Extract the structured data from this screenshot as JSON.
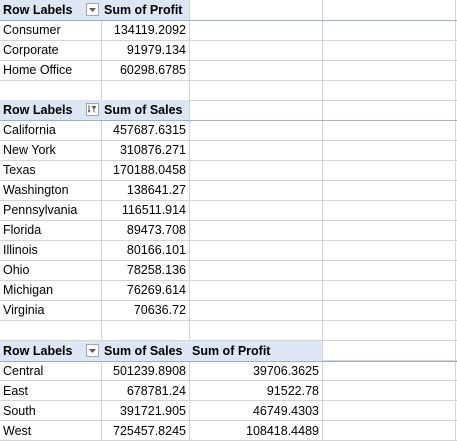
{
  "pivot1": {
    "headers": [
      "Row Labels",
      "Sum of Profit"
    ],
    "rows": [
      [
        "Consumer",
        "134119.2092"
      ],
      [
        "Corporate",
        "91979.134"
      ],
      [
        "Home Office",
        "60298.6785"
      ]
    ],
    "filter_icon": "dropdown-arrow-icon"
  },
  "pivot2": {
    "headers": [
      "Row Labels",
      "Sum of Sales"
    ],
    "rows": [
      [
        "California",
        "457687.6315"
      ],
      [
        "New York",
        "310876.271"
      ],
      [
        "Texas",
        "170188.0458"
      ],
      [
        "Washington",
        "138641.27"
      ],
      [
        "Pennsylvania",
        "116511.914"
      ],
      [
        "Florida",
        "89473.708"
      ],
      [
        "Illinois",
        "80166.101"
      ],
      [
        "Ohio",
        "78258.136"
      ],
      [
        "Michigan",
        "76269.614"
      ],
      [
        "Virginia",
        "70636.72"
      ]
    ],
    "filter_icon": "sort-filter-icon"
  },
  "pivot3": {
    "headers": [
      "Row Labels",
      "Sum of Sales",
      "Sum of Profit"
    ],
    "rows": [
      [
        "Central",
        "501239.8908",
        "39706.3625"
      ],
      [
        "East",
        "678781.24",
        "91522.78"
      ],
      [
        "South",
        "391721.905",
        "46749.4303"
      ],
      [
        "West",
        "725457.8245",
        "108418.4489"
      ]
    ],
    "filter_icon": "dropdown-arrow-icon"
  },
  "colors": {
    "header_fill": "#dde6f4",
    "gridline": "#d4d4d4"
  }
}
